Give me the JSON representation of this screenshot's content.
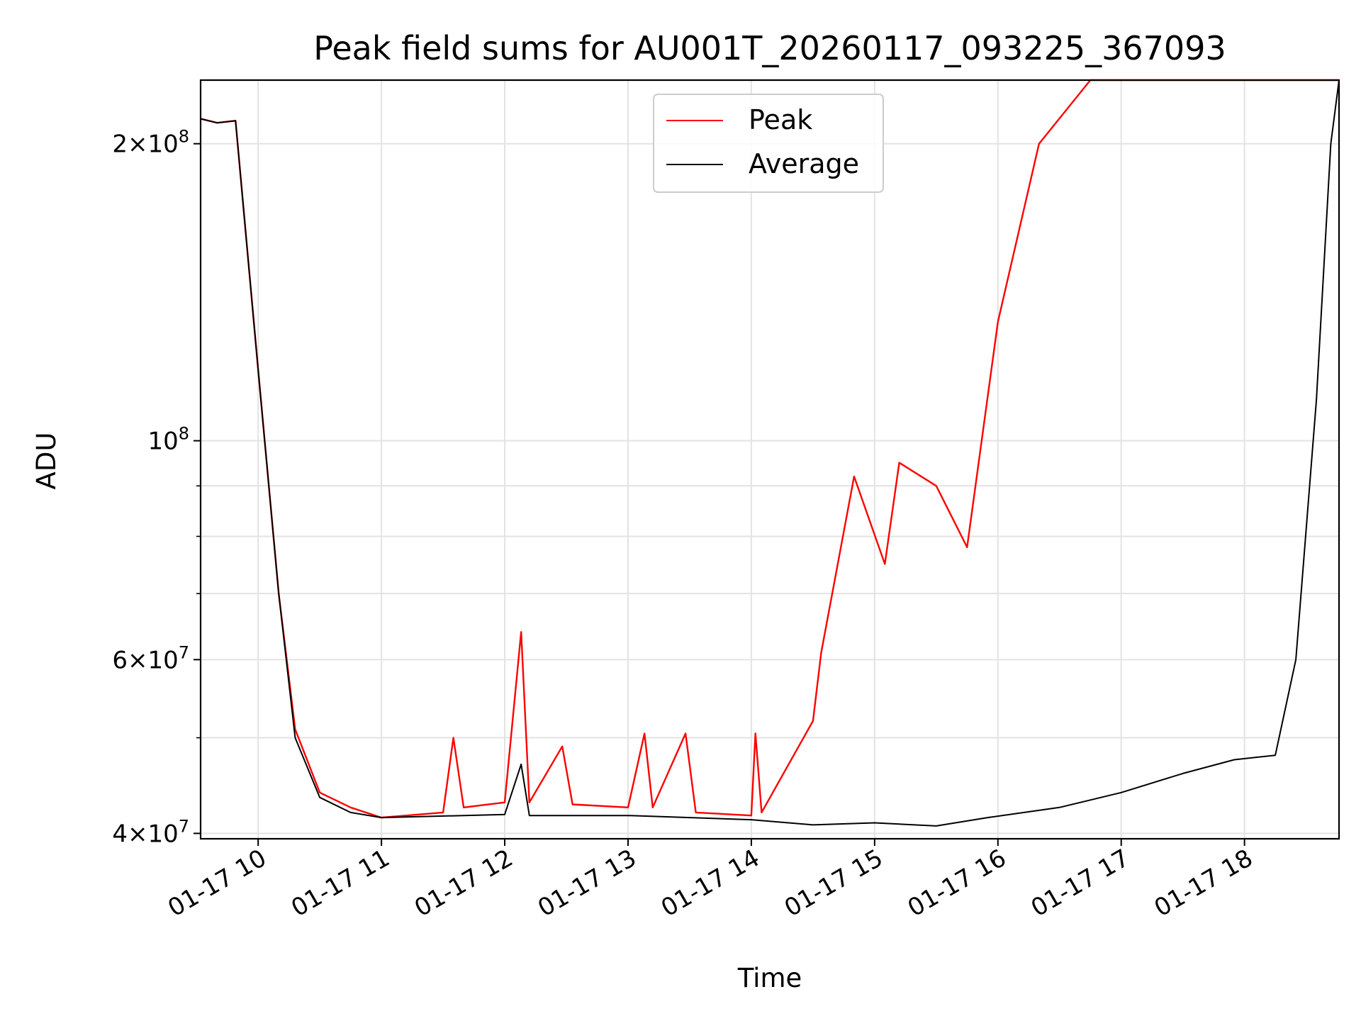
{
  "chart_data": {
    "type": "line",
    "title": "Peak field sums for AU001T_20260117_093225_367093",
    "xlabel": "Time",
    "ylabel": "ADU",
    "yscale": "log",
    "xlim": [
      "2026-01-17 09:32",
      "2026-01-17 18:46"
    ],
    "ylim": [
      39500000,
      232000000
    ],
    "grid": true,
    "legend_position": "upper center",
    "x_ticks": [
      {
        "t": "2026-01-17 10:00",
        "label": "01-17 10"
      },
      {
        "t": "2026-01-17 11:00",
        "label": "01-17 11"
      },
      {
        "t": "2026-01-17 12:00",
        "label": "01-17 12"
      },
      {
        "t": "2026-01-17 13:00",
        "label": "01-17 13"
      },
      {
        "t": "2026-01-17 14:00",
        "label": "01-17 14"
      },
      {
        "t": "2026-01-17 15:00",
        "label": "01-17 15"
      },
      {
        "t": "2026-01-17 16:00",
        "label": "01-17 16"
      },
      {
        "t": "2026-01-17 17:00",
        "label": "01-17 17"
      },
      {
        "t": "2026-01-17 18:00",
        "label": "01-17 18"
      }
    ],
    "y_major_ticks": [
      {
        "value": 40000000,
        "base": "4",
        "exp": "7"
      },
      {
        "value": 60000000,
        "base": "6",
        "exp": "7"
      },
      {
        "value": 100000000,
        "base": "",
        "exp": "8"
      },
      {
        "value": 200000000,
        "base": "2",
        "exp": "8"
      }
    ],
    "y_minor_ticks": [
      50000000,
      70000000,
      80000000,
      90000000
    ],
    "series": [
      {
        "name": "Peak",
        "color": "#ff0000",
        "points": [
          [
            "2026-01-17 09:32",
            212000000
          ],
          [
            "2026-01-17 09:40",
            210000000
          ],
          [
            "2026-01-17 09:49",
            211000000
          ],
          [
            "2026-01-17 10:00",
            118000000
          ],
          [
            "2026-01-17 10:10",
            70000000
          ],
          [
            "2026-01-17 10:18",
            51000000
          ],
          [
            "2026-01-17 10:30",
            44000000
          ],
          [
            "2026-01-17 10:45",
            42500000
          ],
          [
            "2026-01-17 11:00",
            41500000
          ],
          [
            "2026-01-17 11:30",
            42000000
          ],
          [
            "2026-01-17 11:35",
            50000000
          ],
          [
            "2026-01-17 11:40",
            42500000
          ],
          [
            "2026-01-17 12:00",
            43000000
          ],
          [
            "2026-01-17 12:08",
            64000000
          ],
          [
            "2026-01-17 12:12",
            43000000
          ],
          [
            "2026-01-17 12:28",
            49000000
          ],
          [
            "2026-01-17 12:33",
            42800000
          ],
          [
            "2026-01-17 13:00",
            42500000
          ],
          [
            "2026-01-17 13:08",
            50500000
          ],
          [
            "2026-01-17 13:12",
            42500000
          ],
          [
            "2026-01-17 13:28",
            50500000
          ],
          [
            "2026-01-17 13:33",
            42000000
          ],
          [
            "2026-01-17 14:00",
            41700000
          ],
          [
            "2026-01-17 14:02",
            50500000
          ],
          [
            "2026-01-17 14:05",
            42000000
          ],
          [
            "2026-01-17 14:30",
            52000000
          ],
          [
            "2026-01-17 14:34",
            61000000
          ],
          [
            "2026-01-17 14:50",
            92000000
          ],
          [
            "2026-01-17 15:05",
            75000000
          ],
          [
            "2026-01-17 15:12",
            95000000
          ],
          [
            "2026-01-17 15:30",
            90000000
          ],
          [
            "2026-01-17 15:45",
            78000000
          ],
          [
            "2026-01-17 16:00",
            132000000
          ],
          [
            "2026-01-17 16:20",
            200000000
          ],
          [
            "2026-01-17 16:45",
            232000000
          ],
          [
            "2026-01-17 17:30",
            232000000
          ],
          [
            "2026-01-17 18:20",
            232000000
          ],
          [
            "2026-01-17 18:46",
            232000000
          ]
        ]
      },
      {
        "name": "Average",
        "color": "#000000",
        "points": [
          [
            "2026-01-17 09:32",
            212000000
          ],
          [
            "2026-01-17 09:40",
            210000000
          ],
          [
            "2026-01-17 09:49",
            211000000
          ],
          [
            "2026-01-17 10:00",
            118000000
          ],
          [
            "2026-01-17 10:10",
            70000000
          ],
          [
            "2026-01-17 10:18",
            50000000
          ],
          [
            "2026-01-17 10:30",
            43500000
          ],
          [
            "2026-01-17 10:45",
            42000000
          ],
          [
            "2026-01-17 11:00",
            41500000
          ],
          [
            "2026-01-17 12:00",
            41800000
          ],
          [
            "2026-01-17 12:08",
            47000000
          ],
          [
            "2026-01-17 12:12",
            41700000
          ],
          [
            "2026-01-17 13:00",
            41700000
          ],
          [
            "2026-01-17 14:00",
            41300000
          ],
          [
            "2026-01-17 14:30",
            40800000
          ],
          [
            "2026-01-17 15:00",
            41000000
          ],
          [
            "2026-01-17 15:30",
            40700000
          ],
          [
            "2026-01-17 15:55",
            41500000
          ],
          [
            "2026-01-17 16:30",
            42500000
          ],
          [
            "2026-01-17 17:00",
            44000000
          ],
          [
            "2026-01-17 17:30",
            46000000
          ],
          [
            "2026-01-17 17:55",
            47500000
          ],
          [
            "2026-01-17 18:15",
            48000000
          ],
          [
            "2026-01-17 18:25",
            60000000
          ],
          [
            "2026-01-17 18:35",
            110000000
          ],
          [
            "2026-01-17 18:42",
            200000000
          ],
          [
            "2026-01-17 18:46",
            232000000
          ]
        ]
      }
    ]
  }
}
